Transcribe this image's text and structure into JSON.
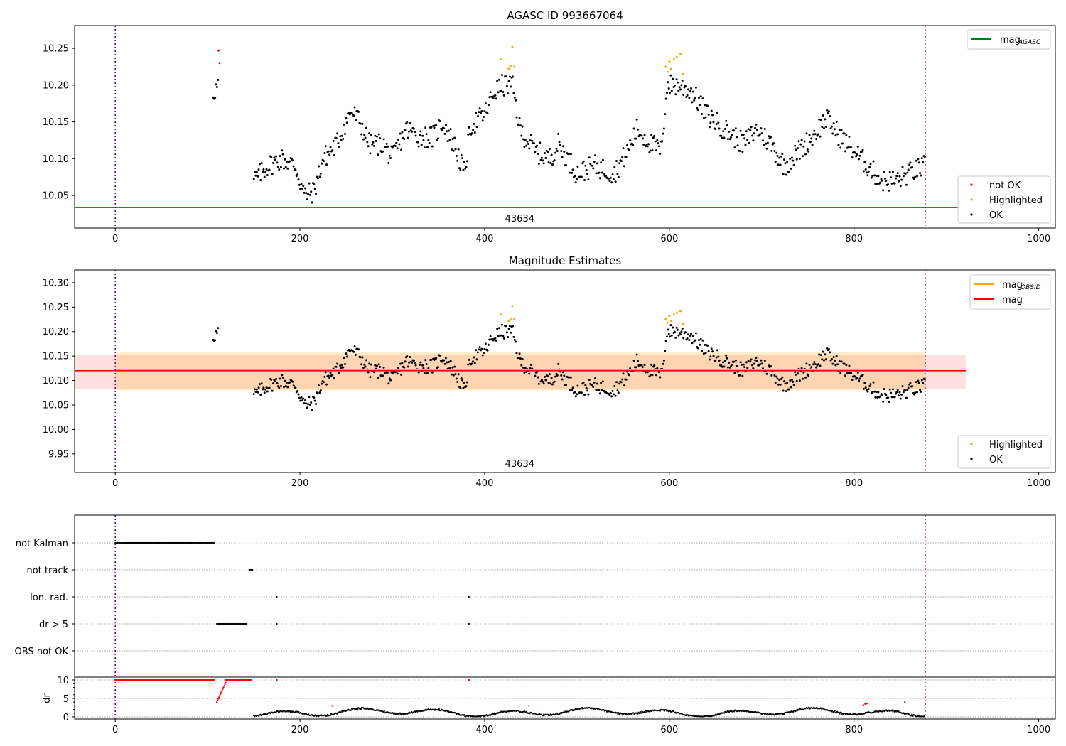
{
  "chart_data": [
    {
      "type": "scatter",
      "title": "AGASC ID 993667064",
      "xlim": [
        -44,
        1018
      ],
      "ylim": [
        10.0056,
        10.281
      ],
      "xticks": [
        0,
        200,
        400,
        600,
        800,
        1000
      ],
      "yticks": [
        10.05,
        10.1,
        10.15,
        10.2,
        10.25
      ],
      "ytick_labels": [
        "10.05",
        "10.10",
        "10.15",
        "10.20",
        "10.25"
      ],
      "annotation": {
        "text": "43634",
        "x": 438
      },
      "obsid_bounds": [
        0,
        877
      ],
      "mag_agasc": {
        "value": 10.0336,
        "x_range": [
          -44,
          921
        ]
      },
      "legend_top": {
        "label_main": "mag",
        "label_sub": "AGASC",
        "color": "#008000",
        "placement": "top-right"
      },
      "legend_bottom": {
        "placement": "lower-right",
        "items": [
          {
            "label": "not OK",
            "color": "#ff0000"
          },
          {
            "label": "Highlighted",
            "color": "#ffa500"
          },
          {
            "label": "OK",
            "color": "#000000"
          }
        ]
      },
      "ok_trend": [
        [
          106,
          10.19
        ],
        [
          112,
          10.2
        ],
        [
          150,
          10.07
        ],
        [
          165,
          10.09
        ],
        [
          180,
          10.1
        ],
        [
          195,
          10.09
        ],
        [
          205,
          10.05
        ],
        [
          215,
          10.055
        ],
        [
          225,
          10.1
        ],
        [
          240,
          10.12
        ],
        [
          255,
          10.165
        ],
        [
          265,
          10.15
        ],
        [
          275,
          10.12
        ],
        [
          290,
          10.12
        ],
        [
          300,
          10.1
        ],
        [
          315,
          10.14
        ],
        [
          330,
          10.13
        ],
        [
          345,
          10.13
        ],
        [
          355,
          10.15
        ],
        [
          370,
          10.11
        ],
        [
          378,
          10.08
        ],
        [
          385,
          10.145
        ],
        [
          400,
          10.16
        ],
        [
          410,
          10.19
        ],
        [
          420,
          10.2
        ],
        [
          430,
          10.2
        ],
        [
          438,
          10.14
        ],
        [
          455,
          10.11
        ],
        [
          470,
          10.1
        ],
        [
          480,
          10.12
        ],
        [
          490,
          10.1
        ],
        [
          500,
          10.08
        ],
        [
          520,
          10.09
        ],
        [
          540,
          10.08
        ],
        [
          555,
          10.11
        ],
        [
          565,
          10.14
        ],
        [
          580,
          10.12
        ],
        [
          592,
          10.11
        ],
        [
          597,
          10.2
        ],
        [
          610,
          10.2
        ],
        [
          625,
          10.19
        ],
        [
          640,
          10.16
        ],
        [
          660,
          10.14
        ],
        [
          680,
          10.12
        ],
        [
          695,
          10.14
        ],
        [
          710,
          10.12
        ],
        [
          725,
          10.09
        ],
        [
          740,
          10.11
        ],
        [
          755,
          10.13
        ],
        [
          770,
          10.155
        ],
        [
          785,
          10.13
        ],
        [
          800,
          10.11
        ],
        [
          815,
          10.09
        ],
        [
          830,
          10.07
        ],
        [
          845,
          10.07
        ],
        [
          860,
          10.08
        ],
        [
          877,
          10.09
        ]
      ],
      "ok_gap": [
        114,
        150
      ],
      "noise": 0.015,
      "highlighted": [
        [
          418,
          10.235
        ],
        [
          426,
          10.222
        ],
        [
          428,
          10.226
        ],
        [
          430,
          10.252
        ],
        [
          432,
          10.225
        ],
        [
          596,
          10.225
        ],
        [
          598,
          10.218
        ],
        [
          600,
          10.232
        ],
        [
          602,
          10.222
        ],
        [
          605,
          10.235
        ],
        [
          608,
          10.238
        ],
        [
          612,
          10.242
        ],
        [
          615,
          10.215
        ]
      ],
      "not_ok": [
        [
          112,
          10.247
        ],
        [
          113,
          10.23
        ]
      ]
    },
    {
      "type": "scatter",
      "title": "Magnitude Estimates",
      "xlim": [
        -44,
        1018
      ],
      "ylim": [
        9.912,
        10.326
      ],
      "xticks": [
        0,
        200,
        400,
        600,
        800,
        1000
      ],
      "yticks": [
        9.95,
        10.0,
        10.05,
        10.1,
        10.15,
        10.2,
        10.25,
        10.3
      ],
      "ytick_labels": [
        "9.95",
        "10.00",
        "10.05",
        "10.10",
        "10.15",
        "10.20",
        "10.25",
        "10.30"
      ],
      "annotation": {
        "text": "43634",
        "x": 438
      },
      "mag_obsid": {
        "value": 10.122,
        "band": [
          10.08,
          10.158
        ],
        "x_range": [
          0,
          877
        ],
        "color": "#ffa500"
      },
      "mag": {
        "value": 10.12,
        "band": [
          10.083,
          10.153
        ],
        "x_range": [
          -44,
          921
        ],
        "color": "#ff0000"
      },
      "legend_top": {
        "placement": "top-right",
        "items": [
          {
            "label_main": "mag",
            "label_sub": "OBSID",
            "color": "#ffa500"
          },
          {
            "label_main": "mag",
            "label_sub": "",
            "color": "#ff0000"
          }
        ]
      },
      "legend_bottom": {
        "placement": "lower-right",
        "items": [
          {
            "label": "Highlighted",
            "color": "#ffa500"
          },
          {
            "label": "OK",
            "color": "#000000"
          }
        ]
      }
    },
    {
      "type": "scatter",
      "categories": [
        "not Kalman",
        "not track",
        "Ion. rad.",
        "dr > 5",
        "OBS not OK"
      ],
      "flags": {
        "not Kalman": [
          [
            0,
            108
          ]
        ],
        "not track": [
          [
            145,
            149
          ]
        ],
        "Ion. rad.": [
          [
            175,
            175
          ],
          [
            383,
            383
          ]
        ],
        "dr > 5": [
          [
            110,
            143
          ],
          [
            175,
            175
          ],
          [
            383,
            383
          ]
        ],
        "OBS not OK": []
      },
      "dr": {
        "ylabel": "dr",
        "ylim": [
          -0.58,
          10.77
        ],
        "yticks": [
          0,
          5,
          10
        ],
        "ytick_labels": [
          "0",
          "5",
          "10"
        ],
        "red_flat": [
          [
            0,
            108,
            10
          ],
          [
            120,
            148,
            10
          ],
          [
            175,
            175,
            10
          ],
          [
            383,
            383,
            10
          ]
        ],
        "red_ramp": [
          [
            110,
            4
          ],
          [
            120,
            9.5
          ]
        ],
        "red_points": [
          [
            235,
            3
          ],
          [
            448,
            3
          ],
          [
            810,
            3.2
          ],
          [
            812,
            3.5
          ],
          [
            814,
            3.6
          ],
          [
            855,
            4
          ]
        ],
        "black_range": [
          150,
          877
        ]
      },
      "xticks": [
        0,
        200,
        400,
        600,
        800,
        1000
      ]
    }
  ]
}
